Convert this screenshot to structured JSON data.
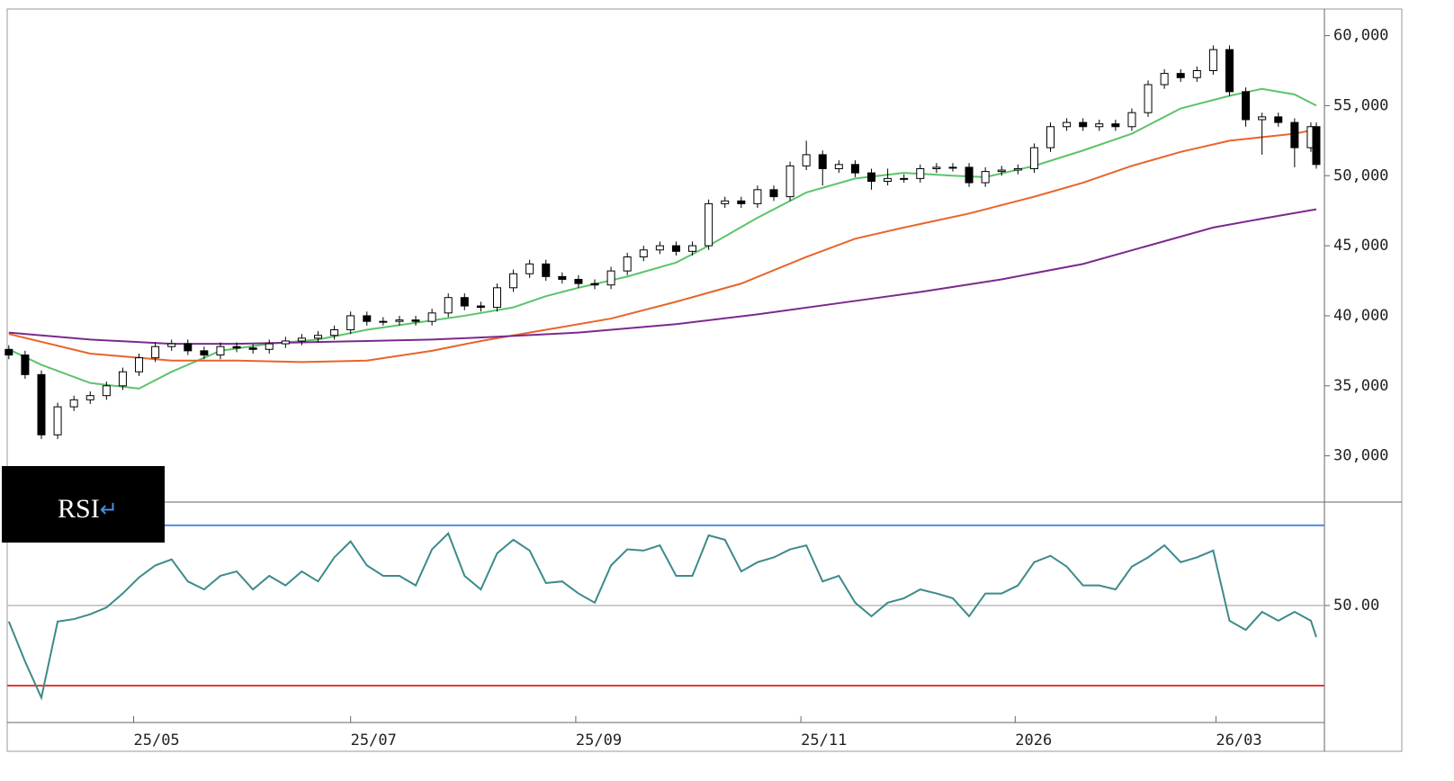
{
  "chart_data": [
    {
      "type": "candlestick",
      "x": [
        0,
        3,
        6,
        9,
        12,
        15,
        18,
        21,
        24,
        27,
        30,
        33,
        36,
        39,
        42,
        45,
        48,
        51,
        54,
        57,
        60,
        63,
        66,
        69,
        72,
        75,
        78,
        81,
        84,
        87,
        90,
        93,
        96,
        99,
        102,
        105,
        108,
        111,
        114,
        117,
        120,
        123,
        126,
        129,
        132,
        135,
        138,
        141,
        144,
        147,
        150,
        153,
        156,
        159,
        162,
        165,
        168,
        171,
        174,
        177,
        180,
        183,
        186,
        189,
        192,
        195,
        198,
        201,
        204,
        207,
        210,
        213,
        216,
        219,
        222,
        225,
        228,
        231,
        234,
        237,
        240,
        241
      ],
      "open": [
        37600,
        37200,
        35800,
        31500,
        33500,
        34000,
        34300,
        35000,
        36000,
        37000,
        37800,
        38000,
        37500,
        37200,
        37800,
        37700,
        37600,
        38000,
        38200,
        38400,
        38600,
        39000,
        40000,
        39600,
        39600,
        39700,
        39600,
        40200,
        41300,
        40700,
        40600,
        42000,
        43000,
        43700,
        42800,
        42600,
        42300,
        42200,
        43200,
        44200,
        44700,
        45000,
        44600,
        45000,
        48000,
        48200,
        48000,
        49000,
        48500,
        50700,
        51500,
        50500,
        50800,
        50200,
        49600,
        49800,
        49800,
        50500,
        50600,
        50600,
        49500,
        50300,
        50400,
        50500,
        52000,
        53500,
        53800,
        53500,
        53700,
        53500,
        54500,
        56500,
        57300,
        57000,
        57500,
        59000,
        56000,
        54000,
        54200,
        53800,
        52000,
        53500
      ],
      "high": [
        37900,
        37500,
        36100,
        33800,
        34300,
        34600,
        35300,
        36300,
        37300,
        38100,
        38300,
        38300,
        37800,
        38100,
        38100,
        38000,
        38300,
        38500,
        38700,
        38900,
        39300,
        40300,
        40300,
        39900,
        40000,
        40000,
        40500,
        41600,
        41600,
        41000,
        42300,
        43300,
        44000,
        44000,
        43100,
        42900,
        42600,
        43500,
        44500,
        45000,
        45300,
        45300,
        45300,
        48300,
        48500,
        48500,
        49300,
        49300,
        51000,
        52500,
        51800,
        51100,
        51100,
        50500,
        50500,
        50100,
        50800,
        50900,
        50900,
        50900,
        50600,
        50700,
        50800,
        52300,
        53800,
        54100,
        54100,
        54000,
        54000,
        54800,
        56800,
        57600,
        57600,
        57800,
        59300,
        59300,
        56300,
        54500,
        54500,
        54100,
        53800,
        53800
      ],
      "low": [
        36900,
        35500,
        31200,
        31200,
        33200,
        33700,
        34000,
        34700,
        35700,
        36700,
        37500,
        37200,
        36900,
        36900,
        37400,
        37300,
        37300,
        37700,
        37900,
        38100,
        38300,
        38700,
        39300,
        39300,
        39300,
        39300,
        39300,
        39900,
        40400,
        40300,
        40300,
        41700,
        42700,
        42500,
        42300,
        42000,
        41900,
        41900,
        42900,
        43900,
        44400,
        44300,
        44300,
        44700,
        47700,
        47700,
        47700,
        48200,
        48200,
        50400,
        49300,
        50200,
        49900,
        49000,
        49300,
        49500,
        49500,
        50200,
        50300,
        49200,
        49200,
        50000,
        50100,
        50200,
        51700,
        53200,
        53200,
        53200,
        53200,
        53200,
        54200,
        56200,
        56700,
        56700,
        57200,
        55700,
        53500,
        51500,
        53500,
        50600,
        51700,
        50500
      ],
      "close": [
        37200,
        35800,
        31500,
        33500,
        34000,
        34300,
        35000,
        36000,
        37000,
        37800,
        38000,
        37500,
        37200,
        37800,
        37700,
        37600,
        38000,
        38200,
        38400,
        38600,
        39000,
        40000,
        39600,
        39600,
        39700,
        39600,
        40200,
        41300,
        40700,
        40600,
        42000,
        43000,
        43700,
        42800,
        42600,
        42300,
        42200,
        43200,
        44200,
        44700,
        45000,
        44600,
        45000,
        48000,
        48200,
        48000,
        49000,
        48500,
        50700,
        51500,
        50500,
        50800,
        50200,
        49600,
        49800,
        49800,
        50500,
        50600,
        50600,
        49500,
        50300,
        50400,
        50500,
        52000,
        53500,
        53800,
        53500,
        53700,
        53500,
        54500,
        56500,
        57300,
        57000,
        57500,
        59000,
        56000,
        54000,
        54200,
        53800,
        52000,
        53500,
        50800
      ],
      "up_color": "#ffffff",
      "down_color": "#000000",
      "lines": [
        {
          "color": "#5cc46a",
          "x": [
            0,
            6,
            15,
            24,
            30,
            39,
            48,
            57,
            66,
            75,
            84,
            93,
            99,
            105,
            114,
            123,
            129,
            138,
            147,
            156,
            165,
            174,
            180,
            189,
            198,
            207,
            216,
            225,
            231,
            237,
            241
          ],
          "values": [
            37600,
            36500,
            35200,
            34800,
            36000,
            37500,
            38000,
            38300,
            39000,
            39500,
            40000,
            40600,
            41400,
            42000,
            42800,
            43800,
            45000,
            47000,
            48800,
            49800,
            50200,
            50000,
            49900,
            50700,
            51800,
            53000,
            54800,
            55700,
            56200,
            55800,
            55000
          ]
        },
        {
          "color": "#e8642a",
          "x": [
            0,
            15,
            30,
            42,
            54,
            66,
            78,
            87,
            99,
            111,
            123,
            135,
            147,
            156,
            165,
            177,
            189,
            198,
            207,
            216,
            225,
            237,
            241
          ],
          "values": [
            38700,
            37300,
            36800,
            36800,
            36700,
            36800,
            37500,
            38200,
            39000,
            39800,
            41000,
            42300,
            44200,
            45500,
            46300,
            47300,
            48500,
            49500,
            50700,
            51700,
            52500,
            53000,
            53300
          ]
        },
        {
          "color": "#7b2a8c",
          "x": [
            0,
            15,
            30,
            42,
            54,
            66,
            78,
            90,
            105,
            123,
            138,
            153,
            168,
            183,
            198,
            210,
            222,
            232,
            241
          ],
          "values": [
            38800,
            38300,
            38000,
            38000,
            38100,
            38200,
            38300,
            38500,
            38800,
            39400,
            40100,
            40900,
            41700,
            42600,
            43700,
            45000,
            46300,
            47000,
            47600
          ]
        }
      ],
      "xlim": [
        -0.3,
        242.5
      ],
      "ylim": [
        26700,
        61900
      ],
      "yticks": [
        {
          "value": 30000,
          "label": "30,000"
        },
        {
          "value": 35000,
          "label": "35,000"
        },
        {
          "value": 40000,
          "label": "40,000"
        },
        {
          "value": 45000,
          "label": "45,000"
        },
        {
          "value": 50000,
          "label": "50,000"
        },
        {
          "value": 55000,
          "label": "55,000"
        },
        {
          "value": 60000,
          "label": "60,000"
        }
      ],
      "xticks": [
        {
          "value": 23,
          "label": "25/05"
        },
        {
          "value": 63,
          "label": "25/07"
        },
        {
          "value": 104.5,
          "label": "25/09"
        },
        {
          "value": 146,
          "label": "25/11"
        },
        {
          "value": 185.5,
          "label": "2026"
        },
        {
          "value": 222.5,
          "label": "26/03"
        }
      ]
    },
    {
      "type": "line",
      "label": "RSI",
      "label_mark": "↵",
      "color": "#3d8a8a",
      "x": [
        0,
        3,
        6,
        9,
        12,
        15,
        18,
        21,
        24,
        27,
        30,
        33,
        36,
        39,
        42,
        45,
        48,
        51,
        54,
        57,
        60,
        63,
        66,
        69,
        72,
        75,
        78,
        81,
        84,
        87,
        90,
        93,
        96,
        99,
        102,
        105,
        108,
        111,
        114,
        117,
        120,
        123,
        126,
        129,
        132,
        135,
        138,
        141,
        144,
        147,
        150,
        153,
        156,
        159,
        162,
        165,
        168,
        171,
        174,
        177,
        180,
        183,
        186,
        189,
        192,
        195,
        198,
        201,
        204,
        207,
        210,
        213,
        216,
        219,
        222,
        225,
        228,
        231,
        234,
        237,
        240,
        241
      ],
      "values": [
        46,
        36,
        27,
        46,
        46.6,
        47.8,
        49.5,
        53,
        57,
        60,
        61.5,
        56,
        54,
        57.4,
        58.5,
        54,
        57.4,
        55,
        58.5,
        56,
        62,
        66,
        60,
        57.4,
        57.4,
        55,
        64,
        68,
        57.4,
        54,
        63,
        66.4,
        63.7,
        55.6,
        56,
        53,
        50.7,
        60,
        64,
        63.7,
        65,
        57.4,
        57.4,
        67.5,
        66.4,
        58.5,
        60.8,
        62,
        64,
        65,
        56,
        57.4,
        50.7,
        47.3,
        50.7,
        51.8,
        54,
        53,
        51.8,
        47.3,
        53,
        53,
        55,
        60.8,
        62.4,
        59.7,
        55,
        55,
        54,
        59.7,
        62,
        65,
        60.8,
        62,
        63.7,
        46.2,
        43.9,
        48.4,
        46.2,
        48.4,
        46.2,
        42.1
      ],
      "levels": [
        {
          "value": 70,
          "color": "#4a90e2"
        },
        {
          "value": 30,
          "color": "#e53935"
        }
      ],
      "xlim": [
        -0.3,
        242.5
      ],
      "ylim": [
        20.8,
        75.8
      ],
      "yticks": [
        {
          "value": 50,
          "label": "50.00"
        }
      ]
    }
  ]
}
